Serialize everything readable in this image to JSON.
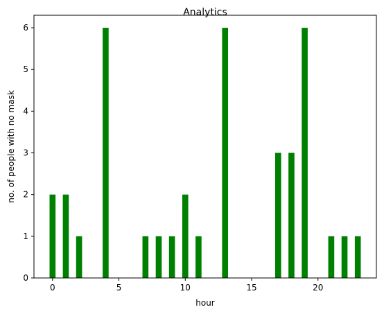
{
  "chart_data": {
    "type": "bar",
    "title": "Analytics",
    "xlabel": "hour",
    "ylabel": "no. of people with no mask",
    "x": [
      0,
      1,
      2,
      4,
      7,
      8,
      9,
      10,
      11,
      13,
      17,
      18,
      19,
      21,
      22,
      23
    ],
    "values": [
      2,
      2,
      1,
      6,
      1,
      1,
      1,
      2,
      1,
      6,
      3,
      3,
      6,
      1,
      1,
      1
    ],
    "xlim": [
      -1.4,
      24.4
    ],
    "ylim": [
      0,
      6.3
    ],
    "xticks": [
      0,
      5,
      10,
      15,
      20
    ],
    "yticks": [
      0,
      1,
      2,
      3,
      4,
      5,
      6
    ],
    "bar_width_hours": 0.45,
    "bar_color": "#008000",
    "grid": false
  }
}
